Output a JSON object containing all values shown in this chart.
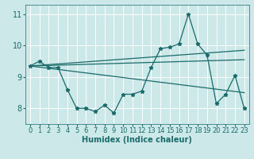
{
  "xlabel": "Humidex (Indice chaleur)",
  "xlim": [
    -0.5,
    23.5
  ],
  "ylim": [
    7.5,
    11.3
  ],
  "yticks": [
    8,
    9,
    10,
    11
  ],
  "xticks": [
    0,
    1,
    2,
    3,
    4,
    5,
    6,
    7,
    8,
    9,
    10,
    11,
    12,
    13,
    14,
    15,
    16,
    17,
    18,
    19,
    20,
    21,
    22,
    23
  ],
  "bg_color": "#cce8e8",
  "line_color": "#1a6b6b",
  "grid_color": "#ffffff",
  "series1": {
    "x": [
      0,
      1,
      2,
      3,
      4,
      5,
      6,
      7,
      8,
      9,
      10,
      11,
      12,
      13,
      14,
      15,
      16,
      17,
      18,
      19,
      20,
      21,
      22,
      23
    ],
    "y": [
      9.35,
      9.5,
      9.3,
      9.3,
      8.6,
      8.0,
      8.0,
      7.9,
      8.1,
      7.85,
      8.45,
      8.45,
      8.55,
      9.3,
      9.9,
      9.95,
      10.05,
      11.0,
      10.05,
      9.7,
      8.15,
      8.45,
      9.05,
      8.0
    ]
  },
  "line_upper": {
    "x0": 0,
    "y0": 9.35,
    "x1": 23,
    "y1": 9.85
  },
  "line_middle": {
    "x0": 0,
    "y0": 9.35,
    "x1": 23,
    "y1": 9.55
  },
  "line_lower": {
    "x0": 0,
    "y0": 9.35,
    "x1": 23,
    "y1": 8.5
  }
}
